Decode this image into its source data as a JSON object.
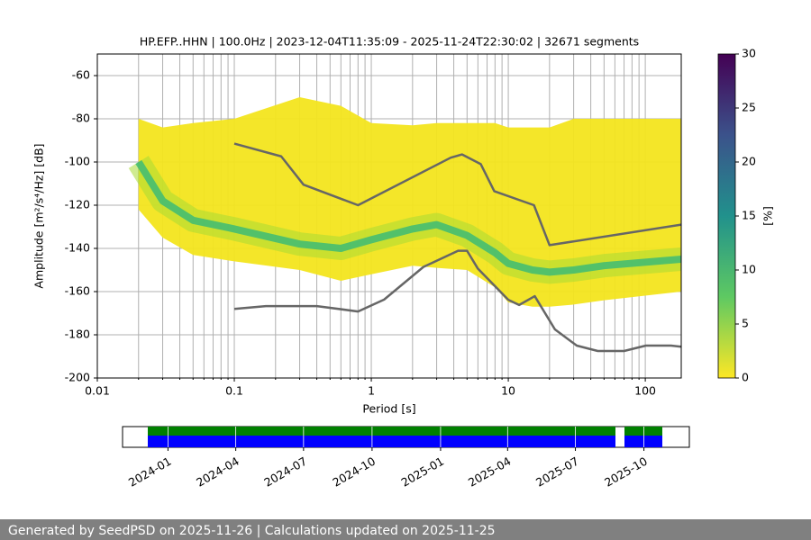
{
  "chart_data": {
    "type": "line",
    "title": "HP.EFP..HHN | 100.0Hz | 2023-12-04T11:35:09 - 2025-11-24T22:30:02 | 32671 segments",
    "xlabel": "Period [s]",
    "ylabel": "Amplitude [m²/s⁴/Hz] [dB]",
    "log_x": true,
    "grid": true,
    "xlim": [
      0.01,
      183
    ],
    "ylim": [
      -200,
      -50
    ],
    "xticks": [
      0.01,
      0.1,
      1,
      10,
      100
    ],
    "xminor": [
      0.02,
      0.03,
      0.04,
      0.05,
      0.06,
      0.07,
      0.08,
      0.09,
      0.2,
      0.3,
      0.4,
      0.5,
      0.6,
      0.7,
      0.8,
      0.9,
      2,
      3,
      4,
      5,
      6,
      7,
      8,
      9,
      20,
      30,
      40,
      50,
      60,
      70,
      80,
      90
    ],
    "yticks": [
      -60,
      -80,
      -100,
      -120,
      -140,
      -160,
      -180,
      -200
    ],
    "pdf": {
      "color": "#f3e51e",
      "mode_color": "#3dbb74",
      "x": [
        0.02,
        0.03,
        0.05,
        0.1,
        0.3,
        0.6,
        1,
        2,
        3,
        5,
        8,
        10,
        15,
        20,
        30,
        50,
        183
      ],
      "upper": [
        -80,
        -84,
        -82,
        -80,
        -70,
        -74,
        -82,
        -83,
        -82,
        -82,
        -82,
        -84,
        -84,
        -84,
        -80,
        -80,
        -80
      ],
      "lower": [
        -122,
        -135,
        -143,
        -146,
        -150,
        -155,
        -152,
        -148,
        -149,
        -150,
        -158,
        -165,
        -167,
        -167,
        -166,
        -164,
        -160
      ],
      "mode": [
        -100,
        -118,
        -127,
        -131,
        -138,
        -140,
        -136,
        -131,
        -129,
        -134,
        -142,
        -147,
        -150,
        -151,
        -150,
        -148,
        -145
      ]
    },
    "series": [
      {
        "color": "#666666",
        "x": [
          0.1,
          0.22,
          0.32,
          0.8,
          3.8,
          4.6,
          6.3,
          7.9,
          15.4,
          20,
          183
        ],
        "values": [
          -91.5,
          -97.4,
          -110.5,
          -120,
          -98,
          -96.5,
          -101,
          -113.5,
          -120,
          -138.5,
          -129
        ]
      },
      {
        "color": "#666666",
        "x": [
          0.1,
          0.17,
          0.4,
          0.8,
          1.24,
          2.4,
          4.3,
          5,
          6,
          10,
          12,
          15.6,
          21.9,
          31.6,
          45,
          70,
          101,
          154,
          183
        ],
        "values": [
          -168,
          -166.7,
          -166.7,
          -169.2,
          -163.7,
          -148.6,
          -141.1,
          -141.1,
          -149.4,
          -163.8,
          -166.2,
          -162.1,
          -177.5,
          -185,
          -187.5,
          -187.5,
          -185,
          -185,
          -185.5
        ]
      }
    ],
    "colorbar": {
      "label": "[%]",
      "lim": [
        0,
        30
      ],
      "ticks": [
        0,
        5,
        10,
        15,
        20,
        25,
        30
      ],
      "colors": [
        "#fde725",
        "#5ec962",
        "#21918c",
        "#3b528b",
        "#440154"
      ]
    },
    "timeline": {
      "xlim": [
        "2023-11",
        "2025-12"
      ],
      "xticks": [
        "2024-01",
        "2024-04",
        "2024-07",
        "2024-10",
        "2025-01",
        "2025-04",
        "2025-07",
        "2025-10"
      ]
    }
  },
  "footer": "Generated by SeedPSD on 2025-11-26 | Calculations updated on 2025-11-25"
}
